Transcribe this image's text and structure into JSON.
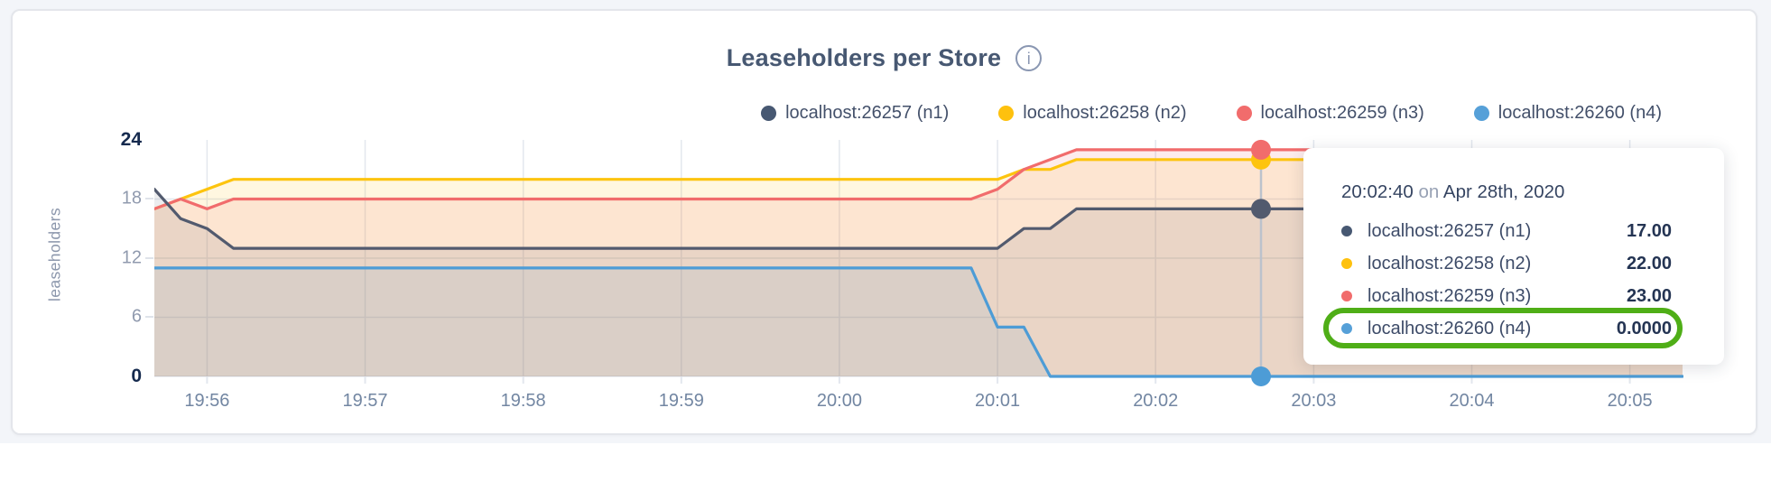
{
  "header": {
    "title": "Leaseholders per Store",
    "info_icon": "i"
  },
  "legend": {
    "items": [
      {
        "label": "localhost:26257 (n1)",
        "color": "#475872"
      },
      {
        "label": "localhost:26258 (n2)",
        "color": "#fec10e"
      },
      {
        "label": "localhost:26259 (n3)",
        "color": "#f16c6c"
      },
      {
        "label": "localhost:26260 (n4)",
        "color": "#56a0d8"
      }
    ]
  },
  "chart_data": {
    "type": "area",
    "title": "Leaseholders per Store",
    "xlabel": "",
    "ylabel": "leaseholders",
    "ylim": [
      0,
      24
    ],
    "grid": true,
    "legend_position": "top-right",
    "grid_color": "#e3e7ee",
    "hover_line_color": "#bcc2cc",
    "y_ticks": [
      {
        "v": 24,
        "label": "24",
        "strong": true
      },
      {
        "v": 18,
        "label": "18",
        "strong": false
      },
      {
        "v": 12,
        "label": "12",
        "strong": false
      },
      {
        "v": 6,
        "label": "6",
        "strong": false
      },
      {
        "v": 0,
        "label": "0",
        "strong": true
      }
    ],
    "y_gridlines": [
      6,
      12,
      18
    ],
    "x_start_time": "19:55:40",
    "x_domain_seconds": 580,
    "x_ticks": [
      {
        "t": 20,
        "label": "19:56"
      },
      {
        "t": 80,
        "label": "19:57"
      },
      {
        "t": 140,
        "label": "19:58"
      },
      {
        "t": 200,
        "label": "19:59"
      },
      {
        "t": 260,
        "label": "20:00"
      },
      {
        "t": 320,
        "label": "20:01"
      },
      {
        "t": 380,
        "label": "20:02"
      },
      {
        "t": 440,
        "label": "20:03"
      },
      {
        "t": 500,
        "label": "20:04"
      },
      {
        "t": 560,
        "label": "20:05"
      }
    ],
    "series": [
      {
        "name": "localhost:26257 (n1)",
        "color": "#525a6e",
        "fill_opacity": 0.11,
        "points": [
          [
            0,
            19
          ],
          [
            10,
            16
          ],
          [
            20,
            15
          ],
          [
            30,
            13
          ],
          [
            320,
            13
          ],
          [
            330,
            15
          ],
          [
            340,
            15
          ],
          [
            350,
            17
          ],
          [
            580,
            17
          ]
        ]
      },
      {
        "name": "localhost:26258 (n2)",
        "color": "#fdc40e",
        "fill_opacity": 0.13,
        "points": [
          [
            0,
            17
          ],
          [
            10,
            18
          ],
          [
            20,
            19
          ],
          [
            30,
            20
          ],
          [
            320,
            20
          ],
          [
            330,
            21
          ],
          [
            340,
            21
          ],
          [
            350,
            22
          ],
          [
            580,
            22
          ]
        ]
      },
      {
        "name": "localhost:26259 (n3)",
        "color": "#f16c6c",
        "fill_opacity": 0.13,
        "points": [
          [
            0,
            17
          ],
          [
            10,
            18
          ],
          [
            20,
            17
          ],
          [
            30,
            18
          ],
          [
            310,
            18
          ],
          [
            320,
            19
          ],
          [
            330,
            21
          ],
          [
            340,
            22
          ],
          [
            350,
            23
          ],
          [
            580,
            23
          ]
        ]
      },
      {
        "name": "localhost:26260 (n4)",
        "color": "#4d9cd6",
        "fill_opacity": 0.1,
        "points": [
          [
            0,
            11
          ],
          [
            310,
            11
          ],
          [
            320,
            5
          ],
          [
            330,
            5
          ],
          [
            340,
            0
          ],
          [
            580,
            0
          ]
        ]
      }
    ],
    "hover": {
      "t": 420,
      "time": "20:02:40",
      "values": [
        17,
        22,
        23,
        0
      ]
    }
  },
  "tooltip": {
    "time": "20:02:40",
    "connector": "on",
    "date": "Apr 28th, 2020",
    "highlight_color": "#4fae17",
    "rows": [
      {
        "name": "localhost:26257 (n1)",
        "value": "17.00",
        "color": "#475872"
      },
      {
        "name": "localhost:26258 (n2)",
        "value": "22.00",
        "color": "#fec10e"
      },
      {
        "name": "localhost:26259 (n3)",
        "value": "23.00",
        "color": "#f16c6c"
      },
      {
        "name": "localhost:26260 (n4)",
        "value": "0.0000",
        "color": "#56a0d8"
      }
    ]
  }
}
